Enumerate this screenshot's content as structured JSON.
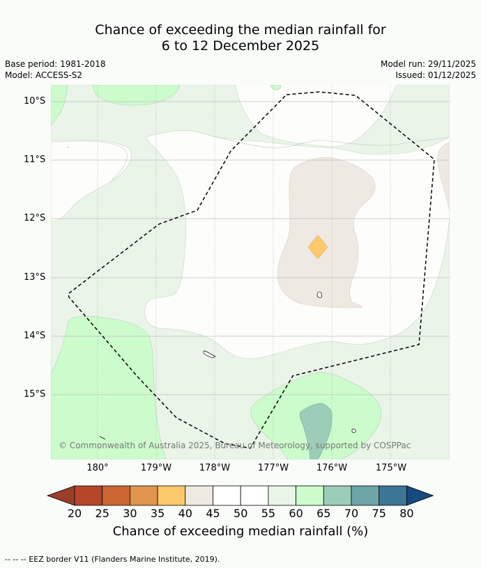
{
  "title": {
    "line1": "Chance of exceeding the median rainfall for",
    "line2": "6 to 12 December 2025"
  },
  "meta": {
    "base_period": "Base period: 1981-2018",
    "model": "Model: ACCESS-S2",
    "model_run": "Model run: 29/11/2025",
    "issued": "Issued: 01/12/2025"
  },
  "map": {
    "lat_labels": [
      "10°S",
      "11°S",
      "12°S",
      "13°S",
      "14°S",
      "15°S"
    ],
    "lon_labels": [
      "180°",
      "179°W",
      "178°W",
      "177°W",
      "176°W",
      "175°W"
    ],
    "lat_range": [
      -16.1,
      -9.7
    ],
    "lon_range": [
      -180.8,
      -174.0
    ],
    "copyright": "© Commonwealth of Australia 2025, Bureau of Meteorology, supported by COSPPac"
  },
  "colorbar": {
    "ticks": [
      "20",
      "25",
      "30",
      "35",
      "40",
      "45",
      "50",
      "55",
      "60",
      "65",
      "70",
      "75",
      "80"
    ],
    "colors": [
      "#b5462a",
      "#cc6633",
      "#e2954c",
      "#fcc96c",
      "#efe9e3",
      "#ffffff",
      "#ffffff",
      "#eaf4e9",
      "#ccfccc",
      "#9ccdb8",
      "#6ea6a8",
      "#3d7594"
    ],
    "under_color": "#9b3e28",
    "over_color": "#174a7e",
    "label": "Chance of exceeding median rainfall (%)"
  },
  "footnote": "--  --  -- EEZ border V11 (Flanders Marine Institute, 2019)."
}
